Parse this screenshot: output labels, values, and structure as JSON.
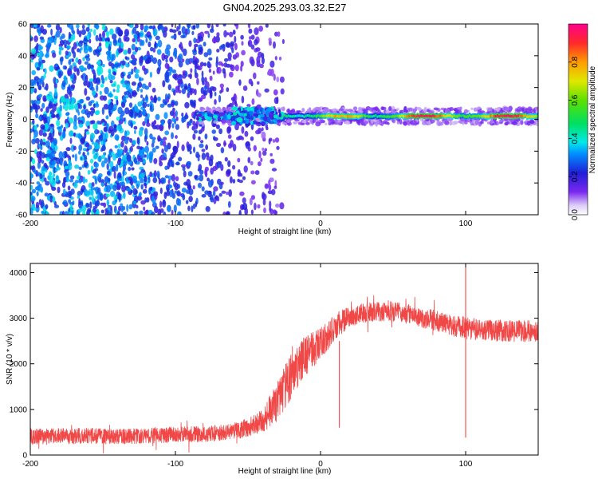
{
  "figure_title": "GN04.2025.293.03.32.E27",
  "chart_data": [
    {
      "type": "heatmap",
      "title": "GN04.2025.293.03.32.E27",
      "xlabel": "Height of straight line (km)",
      "ylabel": "Frequency (Hz)",
      "xlim": [
        -200,
        150
      ],
      "ylim": [
        -60,
        60
      ],
      "x_ticks": [
        -200,
        -100,
        0,
        100
      ],
      "y_ticks": [
        -60,
        -40,
        -20,
        0,
        20,
        40,
        60
      ],
      "x_tick_labels": [
        "-200",
        "-100",
        "0",
        "100"
      ],
      "y_tick_labels": [
        "-60",
        "-40",
        "-20",
        "0",
        "20",
        "40",
        "60"
      ],
      "colorbar": {
        "label": "Normalized spectral amplitude",
        "range": [
          0,
          1
        ],
        "ticks": [
          0.0,
          0.2,
          0.4,
          0.6,
          0.8
        ],
        "tick_labels": [
          "0.0",
          "0.2",
          "0.4",
          "0.6",
          "0.8"
        ]
      },
      "features": {
        "noise_region_x": [
          -200,
          -30
        ],
        "signal_start_x": -85,
        "ridge_frequency_hz": 2,
        "ridge_x_range": [
          -85,
          150
        ],
        "burst_x_range": [
          -60,
          -28
        ],
        "strong_segment_x": [
          -25,
          150
        ]
      }
    },
    {
      "type": "line",
      "xlabel": "Height of straight line (km)",
      "ylabel": "SNR (10 * v/v)",
      "xlim": [
        -200,
        150
      ],
      "ylim": [
        0,
        4200
      ],
      "x_ticks": [
        -200,
        -100,
        0,
        100
      ],
      "y_ticks": [
        0,
        1000,
        2000,
        3000,
        4000
      ],
      "x_tick_labels": [
        "-200",
        "-100",
        "0",
        "100"
      ],
      "y_tick_labels": [
        "0",
        "1000",
        "2000",
        "3000",
        "4000"
      ],
      "series": [
        {
          "name": "SNR",
          "color": "#ee3333",
          "x": [
            -200,
            -180,
            -160,
            -140,
            -120,
            -100,
            -80,
            -60,
            -50,
            -40,
            -30,
            -20,
            -10,
            0,
            10,
            20,
            30,
            40,
            50,
            60,
            70,
            80,
            90,
            100,
            110,
            120,
            130,
            140,
            150
          ],
          "values": [
            400,
            420,
            420,
            400,
            420,
            450,
            460,
            520,
            600,
            750,
            1150,
            1750,
            2200,
            2450,
            2800,
            3050,
            3120,
            3150,
            3150,
            3100,
            3000,
            2950,
            2850,
            2780,
            2750,
            2730,
            2720,
            2720,
            2720
          ],
          "noise_band": [
            350,
            350,
            350,
            350,
            350,
            350,
            350,
            380,
            420,
            520,
            900,
            1000,
            900,
            700,
            600,
            500,
            450,
            450,
            450,
            450,
            450,
            450,
            480,
            480,
            480,
            480,
            480,
            480,
            480
          ],
          "events": [
            {
              "x": 100,
              "min": 380,
              "max": 4250
            },
            {
              "x": 13,
              "min": 600,
              "max": 2500
            }
          ]
        }
      ]
    }
  ]
}
